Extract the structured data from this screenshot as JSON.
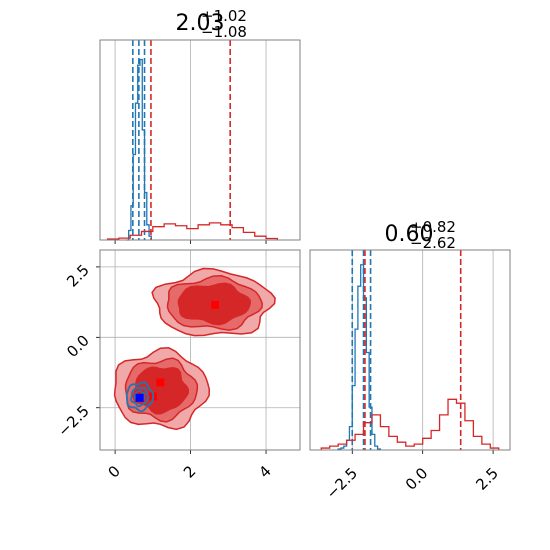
{
  "colors": {
    "blue": "#1f77b4",
    "red": "#d62728",
    "red_fill_outer": "#f0a8a8",
    "red_fill_mid": "#e66a6a",
    "red_fill_inner": "#d62728",
    "grid": "#b0b0b0",
    "spine": "#808080"
  },
  "chart_data": [
    {
      "type": "histogram",
      "panel": "top-left",
      "title": {
        "value": "2.03",
        "upper": "+1.02",
        "lower": "−1.08"
      },
      "xlim": [
        -0.4,
        4.9
      ],
      "grid": true,
      "series": [
        {
          "color": "blue",
          "edges": [
            0.3,
            0.36,
            0.42,
            0.48,
            0.54,
            0.6,
            0.66,
            0.72,
            0.78,
            0.84,
            0.9,
            0.96
          ],
          "counts": [
            0.0,
            0.05,
            0.18,
            0.45,
            0.72,
            0.92,
            0.95,
            0.58,
            0.25,
            0.08,
            0.02
          ],
          "quantile_lines": [
            0.47,
            0.63,
            0.78
          ]
        },
        {
          "color": "red",
          "edges": [
            -0.2,
            0.1,
            0.4,
            0.7,
            1.0,
            1.3,
            1.6,
            1.9,
            2.2,
            2.5,
            2.8,
            3.1,
            3.4,
            3.7,
            4.0,
            4.3
          ],
          "counts": [
            0.005,
            0.01,
            0.025,
            0.045,
            0.07,
            0.085,
            0.075,
            0.06,
            0.08,
            0.09,
            0.08,
            0.065,
            0.04,
            0.02,
            0.008
          ],
          "quantile_lines": [
            0.95,
            3.05
          ]
        }
      ]
    },
    {
      "type": "histogram",
      "panel": "bottom-right",
      "title": {
        "value": "0.60",
        "upper": "+0.82",
        "lower": "−2.62"
      },
      "xlim": [
        -4.0,
        3.1
      ],
      "xticks": [
        -2.5,
        0.0,
        2.5
      ],
      "xtick_labels": [
        "−2.5",
        "0.0",
        "2.5"
      ],
      "grid": true,
      "series": [
        {
          "color": "blue",
          "edges": [
            -3.0,
            -2.9,
            -2.8,
            -2.7,
            -2.6,
            -2.5,
            -2.4,
            -2.3,
            -2.2,
            -2.1,
            -2.0,
            -1.9,
            -1.8,
            -1.7,
            -1.6,
            -1.5
          ],
          "counts": [
            0.005,
            0.01,
            0.02,
            0.05,
            0.12,
            0.33,
            0.62,
            0.84,
            0.95,
            0.78,
            0.5,
            0.22,
            0.08,
            0.02,
            0.005
          ],
          "quantile_lines": [
            -2.5,
            -2.1,
            -1.85
          ]
        },
        {
          "color": "red",
          "edges": [
            -3.6,
            -3.3,
            -3.0,
            -2.7,
            -2.4,
            -2.1,
            -1.8,
            -1.5,
            -1.2,
            -0.9,
            -0.6,
            -0.3,
            0.0,
            0.3,
            0.6,
            0.9,
            1.2,
            1.5,
            1.8,
            2.1,
            2.4,
            2.7
          ],
          "counts": [
            0.01,
            0.02,
            0.03,
            0.05,
            0.08,
            0.14,
            0.18,
            0.12,
            0.07,
            0.04,
            0.02,
            0.03,
            0.06,
            0.1,
            0.18,
            0.26,
            0.24,
            0.15,
            0.07,
            0.03,
            0.01
          ],
          "quantile_lines": [
            -2.05,
            1.35
          ]
        }
      ]
    },
    {
      "type": "contour",
      "panel": "bottom-left",
      "xlim": [
        -0.4,
        4.9
      ],
      "ylim": [
        -4.0,
        3.1
      ],
      "xticks": [
        0,
        2,
        4
      ],
      "xtick_labels": [
        "0",
        "2",
        "4"
      ],
      "yticks": [
        2.5,
        0.0,
        -2.5
      ],
      "ytick_labels": [
        "2.5",
        "0.0",
        "−2.5"
      ],
      "grid": true,
      "regions": [
        {
          "color": "red",
          "center": [
            2.6,
            1.2
          ],
          "radii": [
            [
              1.55,
              1.15
            ],
            [
              1.25,
              0.9
            ],
            [
              0.95,
              0.68
            ]
          ],
          "marker": [
            2.65,
            1.15
          ]
        },
        {
          "color": "red",
          "center": [
            1.2,
            -1.85
          ],
          "radii": [
            [
              1.25,
              1.35
            ],
            [
              0.95,
              1.05
            ],
            [
              0.7,
              0.8
            ]
          ],
          "markers": [
            [
              1.2,
              -1.6
            ],
            [
              1.0,
              -2.1
            ],
            [
              0.65,
              -2.05
            ]
          ]
        },
        {
          "color": "blue",
          "center": [
            0.65,
            -2.1
          ],
          "radii": [
            [
              0.35,
              0.48
            ],
            [
              0.22,
              0.32
            ],
            [
              0.12,
              0.18
            ]
          ],
          "marker": [
            0.65,
            -2.15
          ]
        }
      ]
    }
  ]
}
